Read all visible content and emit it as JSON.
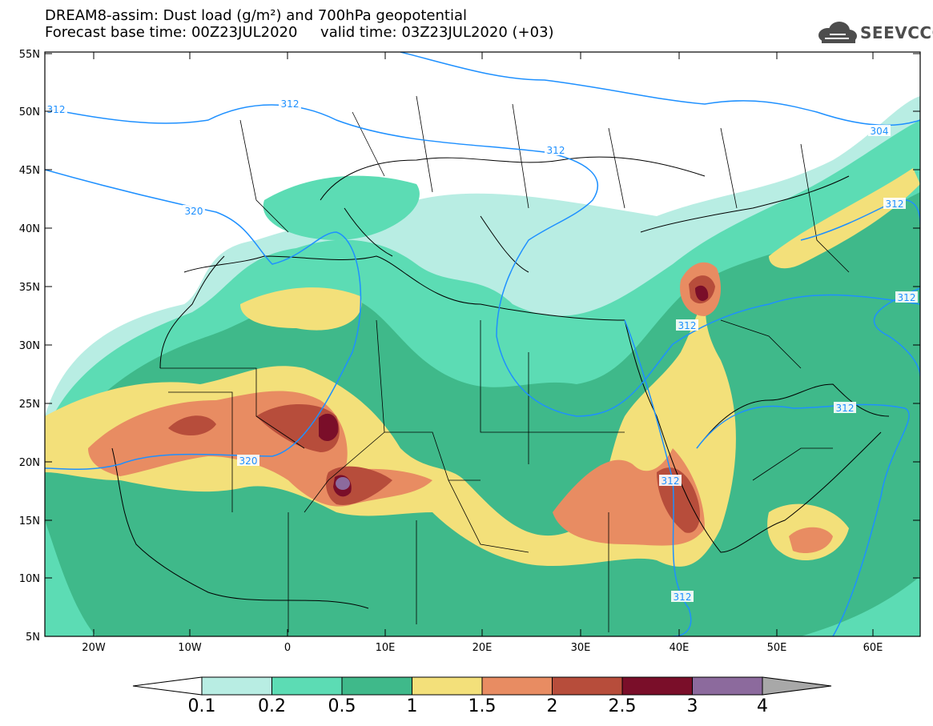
{
  "header": {
    "title_line1": "DREAM8-assim: Dust load (g/m²) and 700hPa geopotential",
    "title_line2": "Forecast base time: 00Z23JUL2020     valid time: 03Z23JUL2020 (+03)"
  },
  "logo": {
    "text": "SEEVCCC",
    "icon": "cloud-icon"
  },
  "map": {
    "lon_ticks": [
      "20W",
      "10W",
      "0",
      "10E",
      "20E",
      "30E",
      "40E",
      "50E",
      "60E"
    ],
    "lat_ticks": [
      "55N",
      "50N",
      "45N",
      "40N",
      "35N",
      "30N",
      "25N",
      "20N",
      "15N",
      "10N",
      "5N"
    ],
    "contour_labels": [
      "312",
      "312",
      "312",
      "304",
      "320",
      "312",
      "312",
      "312",
      "312",
      "320",
      "312",
      "312"
    ]
  },
  "colorbar": {
    "labels": [
      "0.1",
      "0.2",
      "0.5",
      "1",
      "1.5",
      "2",
      "2.5",
      "3",
      "4"
    ],
    "colors": [
      "#b8ede3",
      "#5cdcb4",
      "#3fb98a",
      "#f3e07a",
      "#e88c62",
      "#b74d3b",
      "#7a0e29",
      "#8c6a9d",
      "#a8a8a8"
    ],
    "low_color": "#ffffff",
    "high_color": "#a8a8a8"
  },
  "colors": {
    "contour": "#1e90ff",
    "land": "#ffffff",
    "border": "#000000"
  }
}
